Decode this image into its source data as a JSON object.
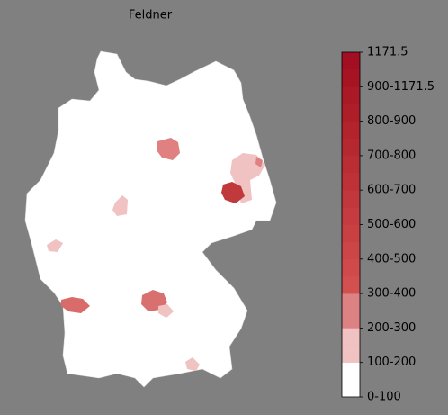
{
  "map": {
    "title": "Feldner",
    "colorbar": {
      "labels": [
        "0-100",
        "100-200",
        "200-300",
        "300-400",
        "400-500",
        "500-600",
        "600-700",
        "700-800",
        "800-900",
        "900-1171.5",
        "1171.5"
      ],
      "colors": [
        "#ffffff",
        "#ffffff",
        "#f0c2c2",
        "#f0c2c2",
        "#dc8282",
        "#dc8282",
        "#d35050",
        "#d04a4c",
        "#cc4547",
        "#c94043",
        "#c53b3f",
        "#c2373b",
        "#be3237",
        "#ba2d33",
        "#b6282f",
        "#b2232c",
        "#ae1e29",
        "#aa1926",
        "#a61424",
        "#a20f22"
      ]
    }
  }
}
